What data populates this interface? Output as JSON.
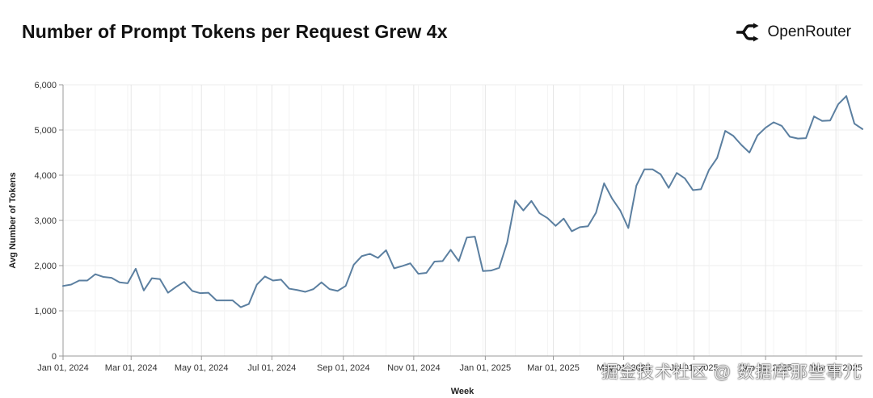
{
  "header": {
    "brand_name": "OpenRouter",
    "brand_icon": "openrouter-logo-icon"
  },
  "watermark": "掘金技术社区 @ 数据库那些事儿",
  "chart_data": {
    "type": "line",
    "title": "Number of Prompt Tokens per Request Grew 4x",
    "xlabel": "Week",
    "ylabel": "Avg Number of Tokens",
    "ylim": [
      0,
      6000
    ],
    "yticks": [
      0,
      1000,
      2000,
      3000,
      4000,
      5000,
      6000
    ],
    "ytick_labels": [
      "0",
      "1,000",
      "2,000",
      "3,000",
      "4,000",
      "5,000",
      "6,000"
    ],
    "xtick_labels": [
      "Jan 01, 2024",
      "Mar 01, 2024",
      "May 01, 2024",
      "Jul 01, 2024",
      "Sep 01, 2024",
      "Nov 01, 2024",
      "Jan 01, 2025",
      "Mar 01, 2025",
      "May 01, 2025",
      "Jul 01, 2025",
      "Sep 01, 2025",
      "Nov 01, 2025"
    ],
    "xtick_weeks": [
      0,
      8.43,
      17.14,
      25.86,
      34.71,
      43.43,
      52.29,
      60.71,
      69.43,
      78.14,
      87,
      95.71
    ],
    "grid": true,
    "line_color": "#5b7fa0",
    "series": [
      {
        "name": "Avg Number of Tokens",
        "x_start": "Jan 01, 2024",
        "step": "week",
        "values": [
          1550,
          1580,
          1670,
          1670,
          1810,
          1750,
          1730,
          1630,
          1610,
          1930,
          1450,
          1720,
          1700,
          1400,
          1530,
          1640,
          1440,
          1390,
          1400,
          1230,
          1230,
          1230,
          1080,
          1150,
          1580,
          1760,
          1670,
          1690,
          1490,
          1460,
          1420,
          1480,
          1630,
          1480,
          1440,
          1550,
          2020,
          2210,
          2260,
          2170,
          2340,
          1940,
          1990,
          2050,
          1820,
          1840,
          2090,
          2100,
          2350,
          2100,
          2620,
          2640,
          1880,
          1890,
          1950,
          2510,
          3440,
          3220,
          3430,
          3160,
          3050,
          2880,
          3040,
          2760,
          2850,
          2870,
          3170,
          3820,
          3480,
          3220,
          2830,
          3770,
          4130,
          4130,
          4020,
          3720,
          4050,
          3930,
          3670,
          3690,
          4120,
          4380,
          4980,
          4870,
          4670,
          4500,
          4880,
          5050,
          5170,
          5090,
          4850,
          4810,
          4820,
          5300,
          5200,
          5210,
          5570,
          5750,
          5140,
          5020
        ]
      }
    ]
  }
}
